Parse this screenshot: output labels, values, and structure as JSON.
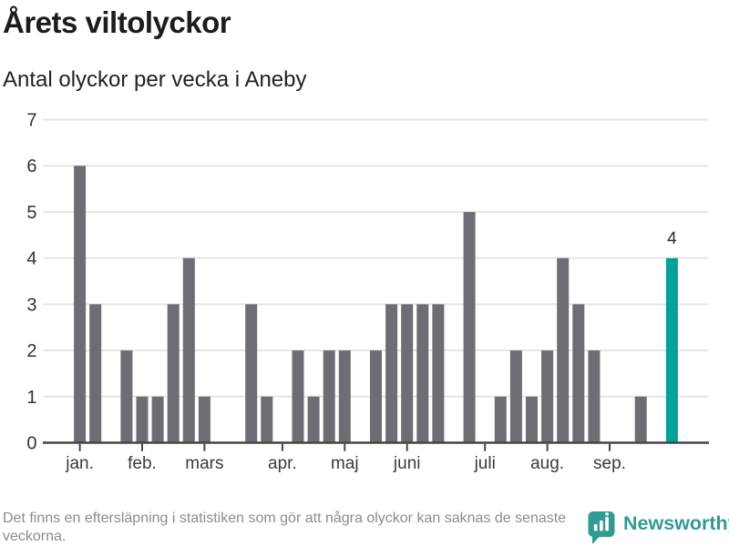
{
  "header": {
    "title": "Årets viltolyckor",
    "subtitle": "Antal olyckor per vecka i Aneby"
  },
  "chart_data": {
    "type": "bar",
    "title": "Årets viltolyckor",
    "subtitle": "Antal olyckor per vecka i Aneby",
    "x_unit": "week",
    "values": [
      6,
      3,
      0,
      2,
      1,
      1,
      3,
      4,
      1,
      0,
      0,
      3,
      1,
      0,
      2,
      1,
      2,
      2,
      0,
      2,
      3,
      3,
      3,
      3,
      0,
      5,
      0,
      1,
      2,
      1,
      2,
      4,
      3,
      2,
      0,
      0,
      1,
      0,
      4
    ],
    "months": [
      {
        "label": "jan.",
        "week_index": 1
      },
      {
        "label": "feb.",
        "week_index": 5
      },
      {
        "label": "mars",
        "week_index": 9
      },
      {
        "label": "apr.",
        "week_index": 14
      },
      {
        "label": "maj",
        "week_index": 18
      },
      {
        "label": "juni",
        "week_index": 22
      },
      {
        "label": "juli",
        "week_index": 27
      },
      {
        "label": "aug.",
        "week_index": 31
      },
      {
        "label": "sep.",
        "week_index": 35
      }
    ],
    "yticks": [
      0,
      1,
      2,
      3,
      4,
      5,
      6,
      7
    ],
    "ylim": [
      0,
      7
    ],
    "grid": "horizontal",
    "highlight": {
      "index": 38,
      "value_label": "4"
    }
  },
  "colors": {
    "bar": "#6e6d73",
    "bar_highlight": "#00a299",
    "gridline": "#e5e5e5",
    "axis": "#454545",
    "tick": "#454545",
    "footer_text": "#8b8b91",
    "brand_teal": "#2f9b93"
  },
  "footer": {
    "note": "Det finns en eftersläpning i statistiken som gör att några olyckor kan saknas de senaste veckorna.",
    "brand": "Newsworthy"
  }
}
